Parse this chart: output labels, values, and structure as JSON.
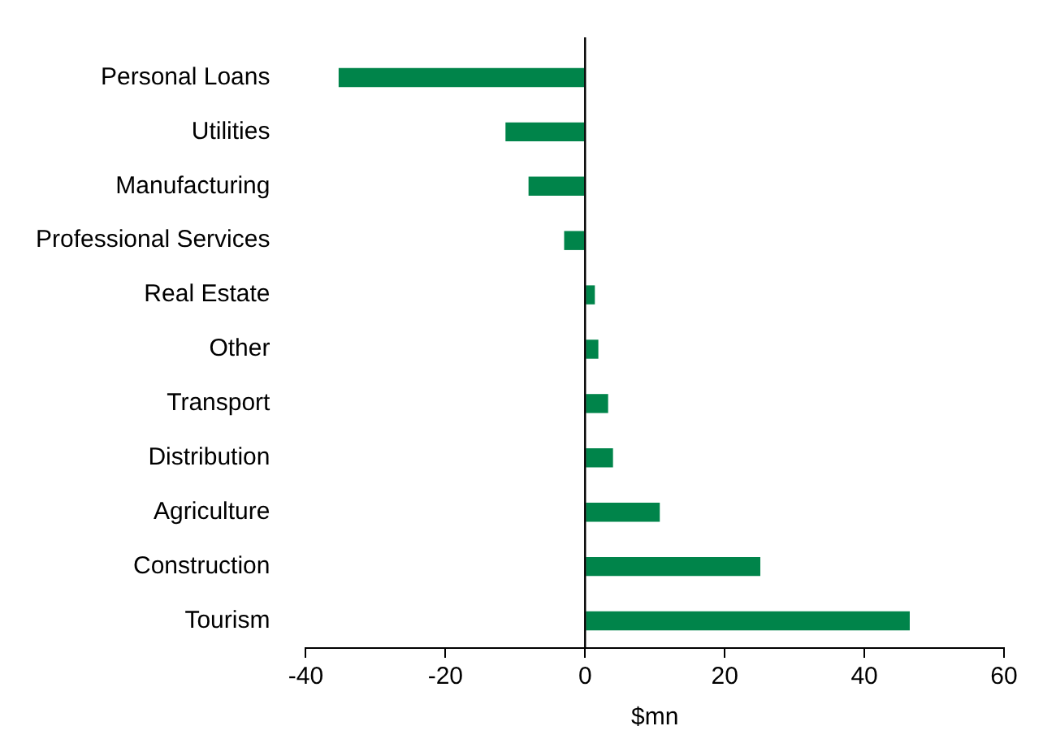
{
  "chart_data": {
    "type": "bar",
    "orientation": "horizontal",
    "xlabel": "$mn",
    "categories": [
      "Personal Loans",
      "Utilities",
      "Manufacturing",
      "Professional Services",
      "Real Estate",
      "Other",
      "Transport",
      "Distribution",
      "Agriculture",
      "Construction",
      "Tourism"
    ],
    "values": [
      -35.3,
      -11.4,
      -8.1,
      -3,
      1.4,
      1.9,
      3.3,
      4,
      10.7,
      25.1,
      46.5
    ],
    "color": "#00844a",
    "xlim": [
      -40,
      60
    ],
    "xticks": [
      -40,
      -20,
      0,
      20,
      40,
      60
    ],
    "grid": false,
    "legend": false,
    "ref_lines": [
      {
        "axis": "x",
        "value": 0,
        "color": "#000000"
      }
    ]
  }
}
